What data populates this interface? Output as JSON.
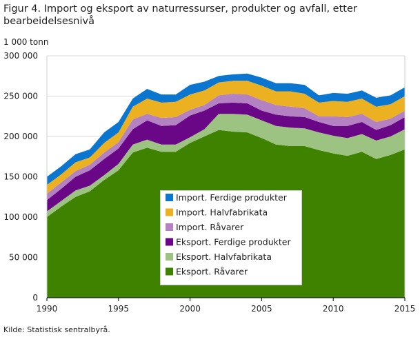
{
  "chart_data": {
    "type": "area",
    "stacked": true,
    "title": "Figur 4. Import og eksport av naturressurser, produkter og avfall, etter bearbeidelsesnivå",
    "ylabel": "1 000 tonn",
    "xlim": [
      1990,
      2015
    ],
    "ylim": [
      0,
      300000
    ],
    "x_ticks": [
      "1990",
      "1995",
      "2000",
      "2005",
      "2010",
      "2015"
    ],
    "y_ticks": [
      "0",
      "50 000",
      "100 000",
      "150 000",
      "200 000",
      "250 000",
      "300 000"
    ],
    "grid": true,
    "legend_placement": "center",
    "x": [
      1990,
      1991,
      1992,
      1993,
      1994,
      1995,
      1996,
      1997,
      1998,
      1999,
      2000,
      2001,
      2002,
      2003,
      2004,
      2005,
      2006,
      2007,
      2008,
      2009,
      2010,
      2011,
      2012,
      2013,
      2014,
      2015
    ],
    "series": [
      {
        "name": "Eksport. Råvarer",
        "color": "#3f8200",
        "values": [
          100000,
          113000,
          125000,
          132000,
          146000,
          158000,
          180000,
          186000,
          181000,
          181000,
          192000,
          200000,
          208000,
          206000,
          205000,
          198000,
          190000,
          188000,
          188000,
          183000,
          179000,
          176000,
          181000,
          172000,
          177000,
          184000
        ]
      },
      {
        "name": "Eksport. Halvfabrikata",
        "color": "#9dc383",
        "values": [
          7000,
          7000,
          8000,
          7000,
          6000,
          8000,
          10000,
          10000,
          9000,
          9000,
          7000,
          9000,
          20000,
          22000,
          22000,
          22000,
          23000,
          23000,
          22000,
          22000,
          22000,
          22000,
          22000,
          23000,
          23000,
          25000
        ]
      },
      {
        "name": "Eksport. Ferdige produkter",
        "color": "#6a0787",
        "values": [
          14000,
          15000,
          17000,
          19000,
          20000,
          19000,
          19000,
          24000,
          23000,
          24000,
          27000,
          23000,
          13000,
          14000,
          14000,
          12000,
          14000,
          14000,
          14000,
          13000,
          12000,
          15000,
          15000,
          13000,
          14000,
          15000
        ]
      },
      {
        "name": "Import. Råvarer",
        "color": "#b482c2",
        "values": [
          8000,
          8000,
          7000,
          7000,
          8000,
          8000,
          12000,
          8000,
          10000,
          10000,
          7000,
          7000,
          10000,
          11000,
          11000,
          13000,
          12000,
          12000,
          11000,
          7000,
          12000,
          11000,
          10000,
          10000,
          8000,
          8000
        ]
      },
      {
        "name": "Import. Halvfabrikata",
        "color": "#ebb120",
        "values": [
          11000,
          10000,
          11000,
          9000,
          12000,
          12000,
          16000,
          19000,
          19000,
          19000,
          19000,
          18000,
          16000,
          16000,
          17000,
          18000,
          17000,
          19000,
          18000,
          17000,
          19000,
          19000,
          19000,
          19000,
          18000,
          18000
        ]
      },
      {
        "name": "Import. Ferdige produkter",
        "color": "#0a76cf",
        "values": [
          10000,
          10000,
          10000,
          10000,
          13000,
          13000,
          10000,
          12000,
          10000,
          9000,
          12000,
          11000,
          8000,
          8000,
          9000,
          10000,
          10000,
          10000,
          11000,
          9000,
          10000,
          10000,
          10000,
          11000,
          11000,
          11000
        ]
      }
    ],
    "legend_order": [
      "Import. Ferdige produkter",
      "Import. Halvfabrikata",
      "Import. Råvarer",
      "Eksport. Ferdige produkter",
      "Eksport. Halvfabrikata",
      "Eksport. Råvarer"
    ]
  },
  "source": "Kilde: Statistisk sentralbyrå."
}
